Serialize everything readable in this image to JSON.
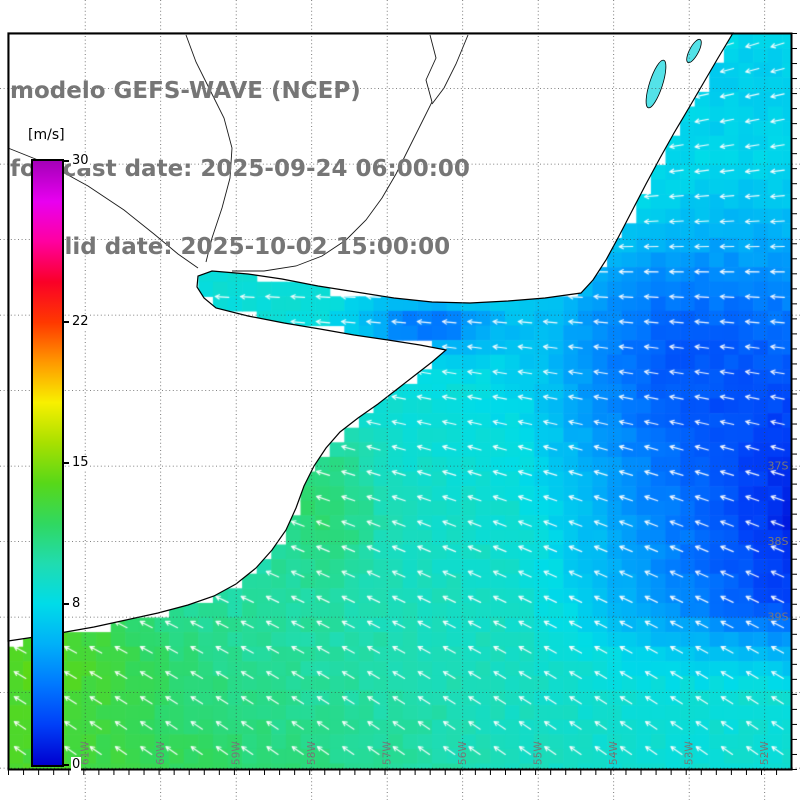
{
  "title": {
    "line1": "modelo GEFS-WAVE (NCEP)",
    "line2": "forecast date: 2025-09-24 06:00:00",
    "line3": "   valid date: 2025-10-02 15:00:00"
  },
  "colorbar": {
    "units": "[m/s]",
    "min": 0,
    "max": 30,
    "tick_labels": [
      "30",
      "22",
      "15",
      "8",
      "0"
    ],
    "tick_values": [
      30,
      22,
      15,
      8,
      0
    ],
    "stops": [
      {
        "value": 0,
        "color": "#0000D0"
      },
      {
        "value": 2,
        "color": "#0040F8"
      },
      {
        "value": 4,
        "color": "#0078FF"
      },
      {
        "value": 6,
        "color": "#00B0F8"
      },
      {
        "value": 8,
        "color": "#00DCE8"
      },
      {
        "value": 10,
        "color": "#20DCB0"
      },
      {
        "value": 12,
        "color": "#30D860"
      },
      {
        "value": 14,
        "color": "#58D818"
      },
      {
        "value": 16,
        "color": "#A8E000"
      },
      {
        "value": 18,
        "color": "#F8F000"
      },
      {
        "value": 20,
        "color": "#FF9800"
      },
      {
        "value": 22,
        "color": "#FF3800"
      },
      {
        "value": 24,
        "color": "#FA0028"
      },
      {
        "value": 26,
        "color": "#FF00A0"
      },
      {
        "value": 28,
        "color": "#E800F0"
      },
      {
        "value": 30,
        "color": "#A400B8"
      }
    ]
  },
  "map": {
    "lat_labels": [
      "37S",
      "38S",
      "39S"
    ],
    "lon_labels": [
      "61W",
      "60W",
      "59W",
      "58W",
      "57W",
      "56W",
      "55W",
      "54W",
      "53W",
      "52W"
    ],
    "arrow_color": "#FFFFFF",
    "land_color": "#FFFFFF",
    "coast_color": "#000000",
    "grid_color": "#3C3C3C",
    "label_color": "#787878"
  }
}
